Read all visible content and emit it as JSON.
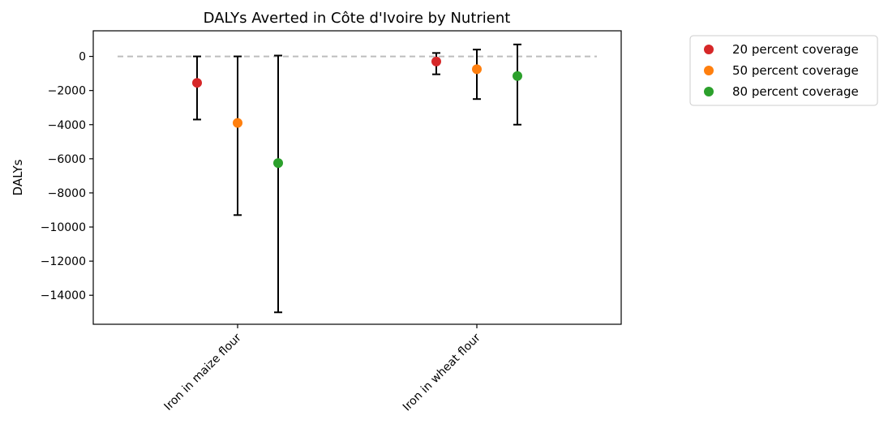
{
  "chart_data": {
    "type": "scatter",
    "title": "DALYs Averted in Côte d'Ivoire by Nutrient",
    "xlabel": "",
    "ylabel": "DALYs",
    "categories": [
      "Iron in maize flour",
      "Iron in wheat flour"
    ],
    "ylim": [
      -15700,
      1500
    ],
    "yticks": [
      0,
      -2000,
      -4000,
      -6000,
      -8000,
      -10000,
      -12000,
      -14000
    ],
    "ytick_labels": [
      "0",
      "−2000",
      "−4000",
      "−6000",
      "−8000",
      "−10000",
      "−12000",
      "−14000"
    ],
    "reference_line": 0,
    "grid": false,
    "legend_position": "outside-right",
    "series": [
      {
        "name": "20 percent coverage",
        "color": "#d62728",
        "values": [
          -1550,
          -300
        ],
        "error_low": [
          -3700,
          -1050
        ],
        "error_high": [
          0,
          200
        ]
      },
      {
        "name": "50 percent coverage",
        "color": "#ff7f0e",
        "values": [
          -3900,
          -750
        ],
        "error_low": [
          -9300,
          -2500
        ],
        "error_high": [
          0,
          400
        ]
      },
      {
        "name": "80 percent coverage",
        "color": "#2ca02c",
        "values": [
          -6250,
          -1150
        ],
        "error_low": [
          -15000,
          -4000
        ],
        "error_high": [
          50,
          700
        ]
      }
    ]
  }
}
